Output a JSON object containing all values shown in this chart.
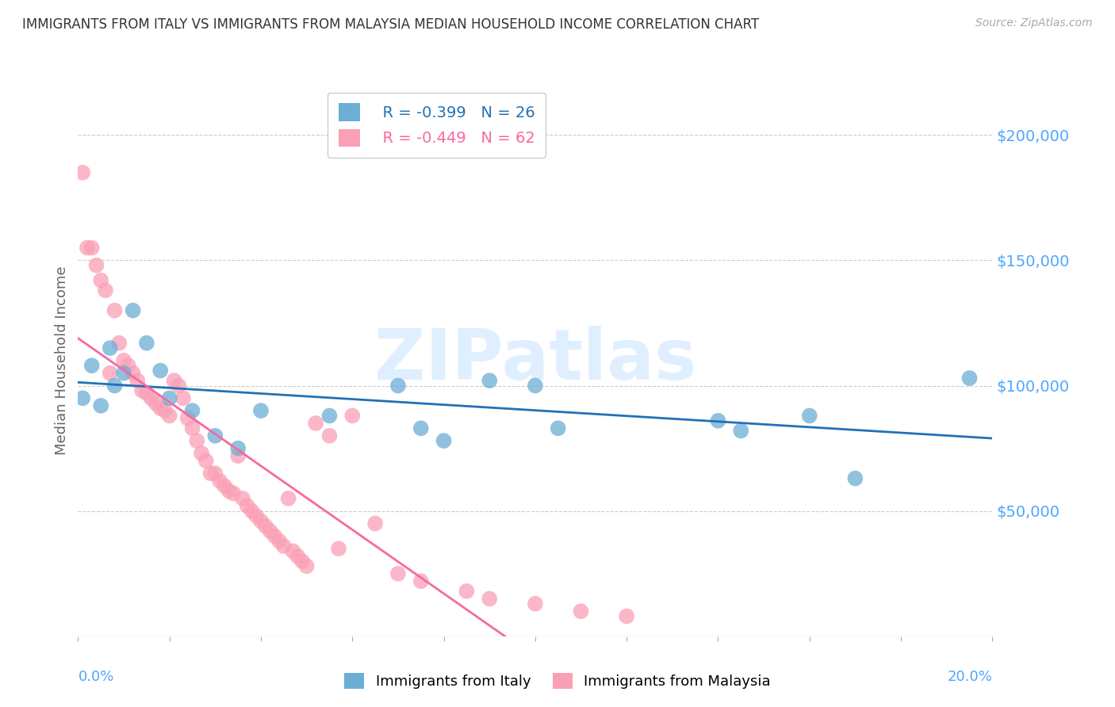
{
  "title": "IMMIGRANTS FROM ITALY VS IMMIGRANTS FROM MALAYSIA MEDIAN HOUSEHOLD INCOME CORRELATION CHART",
  "source": "Source: ZipAtlas.com",
  "ylabel": "Median Household Income",
  "yticks": [
    0,
    50000,
    100000,
    150000,
    200000
  ],
  "ytick_labels": [
    "",
    "$50,000",
    "$100,000",
    "$150,000",
    "$200,000"
  ],
  "xlim": [
    0.0,
    0.2
  ],
  "ylim": [
    0,
    220000
  ],
  "watermark": "ZIPatlas",
  "legend_italy_r": "R = -0.399",
  "legend_italy_n": "N = 26",
  "legend_malaysia_r": "R = -0.449",
  "legend_malaysia_n": "N = 62",
  "italy_color": "#6baed6",
  "malaysia_color": "#fa9fb5",
  "italy_line_color": "#2171b5",
  "malaysia_line_color": "#f768a1",
  "axis_label_color": "#4da6ff",
  "background_color": "#ffffff",
  "grid_color": "#cccccc",
  "title_color": "#333333",
  "italy_scatter_x": [
    0.001,
    0.003,
    0.005,
    0.007,
    0.008,
    0.01,
    0.012,
    0.015,
    0.018,
    0.02,
    0.025,
    0.03,
    0.035,
    0.04,
    0.055,
    0.07,
    0.075,
    0.08,
    0.09,
    0.1,
    0.105,
    0.14,
    0.145,
    0.16,
    0.17,
    0.195
  ],
  "italy_scatter_y": [
    95000,
    108000,
    92000,
    115000,
    100000,
    105000,
    130000,
    117000,
    106000,
    95000,
    90000,
    80000,
    75000,
    90000,
    88000,
    100000,
    83000,
    78000,
    102000,
    100000,
    83000,
    86000,
    82000,
    88000,
    63000,
    103000
  ],
  "malaysia_scatter_x": [
    0.001,
    0.002,
    0.003,
    0.004,
    0.005,
    0.006,
    0.007,
    0.008,
    0.009,
    0.01,
    0.011,
    0.012,
    0.013,
    0.014,
    0.015,
    0.016,
    0.017,
    0.018,
    0.019,
    0.02,
    0.021,
    0.022,
    0.023,
    0.024,
    0.025,
    0.026,
    0.027,
    0.028,
    0.029,
    0.03,
    0.031,
    0.032,
    0.033,
    0.034,
    0.035,
    0.036,
    0.037,
    0.038,
    0.039,
    0.04,
    0.041,
    0.042,
    0.043,
    0.044,
    0.045,
    0.046,
    0.047,
    0.048,
    0.049,
    0.05,
    0.052,
    0.055,
    0.057,
    0.06,
    0.065,
    0.07,
    0.075,
    0.085,
    0.09,
    0.1,
    0.11,
    0.12
  ],
  "malaysia_scatter_y": [
    185000,
    155000,
    155000,
    148000,
    142000,
    138000,
    105000,
    130000,
    117000,
    110000,
    108000,
    105000,
    102000,
    98000,
    97000,
    95000,
    93000,
    91000,
    90000,
    88000,
    102000,
    100000,
    95000,
    87000,
    83000,
    78000,
    73000,
    70000,
    65000,
    65000,
    62000,
    60000,
    58000,
    57000,
    72000,
    55000,
    52000,
    50000,
    48000,
    46000,
    44000,
    42000,
    40000,
    38000,
    36000,
    55000,
    34000,
    32000,
    30000,
    28000,
    85000,
    80000,
    35000,
    88000,
    45000,
    25000,
    22000,
    18000,
    15000,
    13000,
    10000,
    8000
  ]
}
